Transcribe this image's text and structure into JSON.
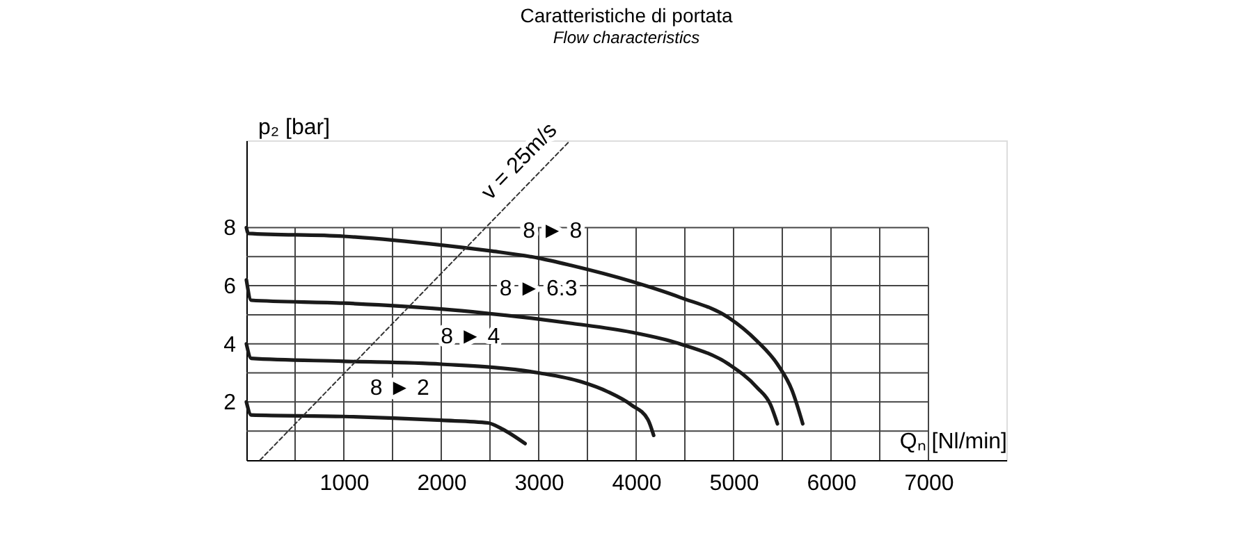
{
  "chart_data": {
    "type": "line",
    "title": "Caratteristiche di portata",
    "subtitle": "Flow characteristics",
    "xlabel": "Qₙ [Nl/min]",
    "ylabel": "p₂ [bar]",
    "xlim": [
      0,
      7800
    ],
    "ylim": [
      0,
      11
    ],
    "xticks": [
      {
        "value": 500,
        "label": null
      },
      1000,
      {
        "value": 1500,
        "label": null
      },
      2000,
      {
        "value": 2500,
        "label": null
      },
      3000,
      {
        "value": 3500,
        "label": null
      },
      4000,
      {
        "value": 4500,
        "label": null
      },
      5000,
      {
        "value": 5500,
        "label": null
      },
      6000,
      {
        "value": 6500,
        "label": null
      },
      7000
    ],
    "yticks": [
      {
        "value": 1,
        "label": null
      },
      2,
      {
        "value": 3,
        "label": null
      },
      4,
      {
        "value": 5,
        "label": null
      },
      6,
      {
        "value": 7,
        "label": null
      },
      8
    ],
    "grid": true,
    "legend": false,
    "marker": "none",
    "series": [
      {
        "name": "8 ► 8",
        "color": "#1a1a1a",
        "x": [
          0,
          20,
          1000,
          2000,
          2500,
          3000,
          3330,
          3950,
          4450,
          4950,
          5240,
          5450,
          5600,
          5710
        ],
        "values": [
          8.0,
          7.8,
          7.7,
          7.4,
          7.2,
          6.95,
          6.7,
          6.15,
          5.6,
          4.9,
          4.1,
          3.3,
          2.4,
          1.25
        ]
      },
      {
        "name": "8 ► 6.3",
        "color": "#1a1a1a",
        "x": [
          0,
          50,
          1000,
          2000,
          3000,
          3350,
          3950,
          4450,
          4950,
          5240,
          5380,
          5450
        ],
        "values": [
          6.2,
          5.5,
          5.4,
          5.2,
          4.85,
          4.7,
          4.4,
          4.0,
          3.3,
          2.5,
          1.9,
          1.25
        ]
      },
      {
        "name": "8 ► 4",
        "color": "#1a1a1a",
        "x": [
          0,
          50,
          1000,
          2000,
          3000,
          3430,
          3710,
          3950,
          4120,
          4180
        ],
        "values": [
          4.0,
          3.5,
          3.4,
          3.3,
          3.0,
          2.7,
          2.35,
          1.9,
          1.4,
          0.85
        ]
      },
      {
        "name": "8 ► 2",
        "color": "#1a1a1a",
        "x": [
          0,
          50,
          1000,
          2000,
          2480,
          2620,
          2860
        ],
        "values": [
          2.0,
          1.55,
          1.5,
          1.37,
          1.28,
          1.08,
          0.57
        ]
      },
      {
        "name": "v = 25m/s",
        "color": "#333333",
        "line_style": "dashed",
        "x": [
          140,
          3310
        ],
        "values": [
          0,
          10.95
        ]
      }
    ]
  }
}
